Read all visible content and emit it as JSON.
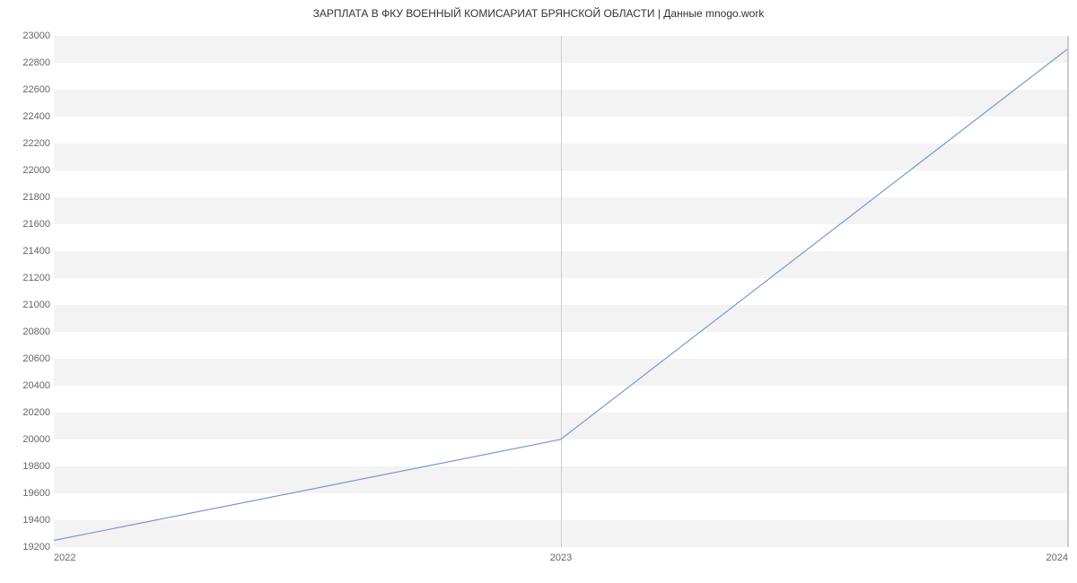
{
  "chart": {
    "type": "line",
    "title": "ЗАРПЛАТА В ФКУ ВОЕННЫЙ КОМИСАРИАТ БРЯНСКОЙ ОБЛАСТИ | Данные mnogo.work",
    "title_fontsize": 12,
    "title_color": "#333333",
    "background_color": "#ffffff",
    "plot_band_color": "#f3f3f3",
    "axis_label_color": "#666666",
    "axis_label_fontsize": 11,
    "line_color": "#7998d4",
    "line_width": 1.2,
    "x": {
      "ticks": [
        "2022",
        "2023",
        "2024"
      ],
      "positions": [
        0,
        0.5,
        1
      ]
    },
    "y": {
      "min": 19200,
      "max": 23000,
      "tick_step": 200
    },
    "series": [
      {
        "x": 0.0,
        "y": 19250
      },
      {
        "x": 0.5,
        "y": 20000
      },
      {
        "x": 1.0,
        "y": 22900
      }
    ]
  }
}
